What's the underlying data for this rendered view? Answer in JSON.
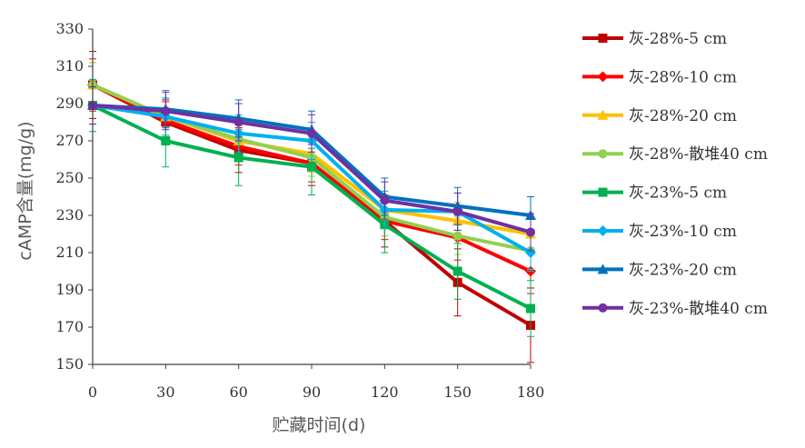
{
  "chart_data": {
    "type": "line",
    "xlabel": "贮藏时间(d)",
    "ylabel": "cAMP含量(mg/g)",
    "x": [
      0,
      30,
      60,
      90,
      120,
      150,
      180
    ],
    "xlim": [
      0,
      180
    ],
    "ylim": [
      150,
      330
    ],
    "yticks": [
      150,
      170,
      190,
      210,
      230,
      250,
      270,
      290,
      310,
      330
    ],
    "grid": false,
    "legend_position": "right",
    "series": [
      {
        "name": "灰-28%-5 cm",
        "color": "#C00000",
        "marker": "square",
        "values": [
          300,
          280,
          265,
          258,
          227,
          194,
          171
        ],
        "err": [
          18,
          12,
          12,
          12,
          14,
          18,
          20
        ]
      },
      {
        "name": "灰-28%-10 cm",
        "color": "#FF0000",
        "marker": "diamond",
        "values": [
          300,
          281,
          267,
          258,
          227,
          218,
          200
        ],
        "err": [
          14,
          10,
          10,
          10,
          10,
          12,
          12
        ]
      },
      {
        "name": "灰-28%-20 cm",
        "color": "#FFC000",
        "marker": "triangle",
        "values": [
          300,
          283,
          270,
          263,
          233,
          227,
          220
        ],
        "err": [
          12,
          10,
          10,
          10,
          10,
          10,
          10
        ]
      },
      {
        "name": "灰-28%-散堆40 cm",
        "color": "#92D050",
        "marker": "circle",
        "values": [
          300,
          283,
          271,
          261,
          229,
          219,
          211
        ],
        "err": [
          12,
          10,
          10,
          10,
          10,
          10,
          10
        ]
      },
      {
        "name": "灰-23%-5 cm",
        "color": "#00B050",
        "marker": "square",
        "values": [
          289,
          270,
          261,
          256,
          225,
          200,
          180
        ],
        "err": [
          14,
          14,
          15,
          15,
          15,
          15,
          15
        ]
      },
      {
        "name": "灰-23%-10 cm",
        "color": "#00B0F0",
        "marker": "diamond",
        "values": [
          289,
          283,
          274,
          270,
          233,
          232,
          210
        ],
        "err": [
          10,
          10,
          10,
          10,
          10,
          10,
          10
        ]
      },
      {
        "name": "灰-23%-20 cm",
        "color": "#0070C0",
        "marker": "triangle",
        "values": [
          289,
          287,
          282,
          276,
          240,
          235,
          230
        ],
        "err": [
          10,
          10,
          10,
          10,
          10,
          10,
          10
        ]
      },
      {
        "name": "灰-23%-散堆40 cm",
        "color": "#7030A0",
        "marker": "circle",
        "values": [
          289,
          286,
          280,
          274,
          238,
          232,
          221
        ],
        "err": [
          10,
          10,
          10,
          10,
          10,
          10,
          10
        ]
      }
    ]
  }
}
